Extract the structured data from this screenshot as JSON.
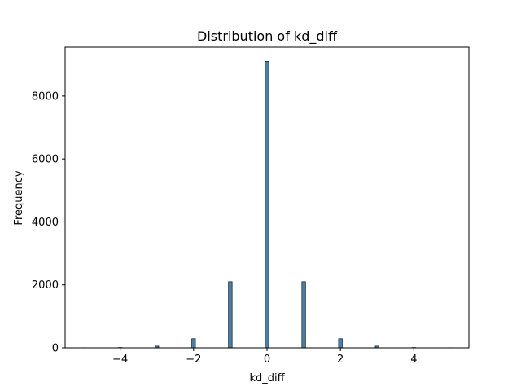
{
  "chart_data": {
    "type": "bar",
    "title": "Distribution of kd_diff",
    "xlabel": "kd_diff",
    "ylabel": "Frequency",
    "xlim": [
      -5.5,
      5.5
    ],
    "ylim": [
      0,
      9550
    ],
    "x_ticks": [
      -4,
      -2,
      0,
      2,
      4
    ],
    "x_tick_labels": [
      "−4",
      "−2",
      "0",
      "2",
      "4"
    ],
    "y_ticks": [
      0,
      2000,
      4000,
      6000,
      8000
    ],
    "y_tick_labels": [
      "0",
      "2000",
      "4000",
      "6000",
      "8000"
    ],
    "bar_width": 0.1,
    "x": [
      -5,
      -4,
      -3,
      -2,
      -1,
      0,
      1,
      2,
      3,
      4,
      5
    ],
    "values": [
      3,
      10,
      55,
      290,
      2100,
      9100,
      2100,
      290,
      55,
      10,
      3
    ],
    "bar_color": "#4c7ea6",
    "edge_color": "#1a2a3a",
    "grid": false,
    "legend": "none"
  }
}
